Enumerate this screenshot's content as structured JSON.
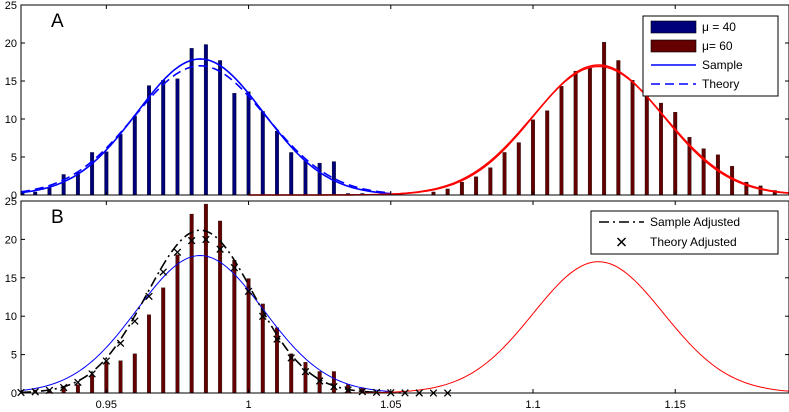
{
  "chart_data": [
    {
      "panel_label": "A",
      "type": "bar",
      "xlim": [
        0.92,
        1.19
      ],
      "ylim": [
        0,
        25
      ],
      "yticks": [
        0,
        5,
        10,
        15,
        20,
        25
      ],
      "xticks": [],
      "legend_position": "top-right",
      "legend": [
        {
          "kind": "patch",
          "label": "μ = 40",
          "color": "#00007a"
        },
        {
          "kind": "patch",
          "label": "μ= 60",
          "color": "#640000"
        },
        {
          "kind": "line",
          "label": "Sample",
          "color": "#0000ff",
          "dash": "solid"
        },
        {
          "kind": "line",
          "label": "Theory",
          "color": "#0000ff",
          "dash": "dashed"
        }
      ],
      "bars": [
        {
          "name": "μ = 40",
          "color": "#00007a",
          "x": [
            0.9205,
            0.925,
            0.93,
            0.935,
            0.94,
            0.945,
            0.95,
            0.955,
            0.96,
            0.965,
            0.97,
            0.975,
            0.98,
            0.985,
            0.99,
            0.995,
            1.0,
            1.005,
            1.01,
            1.015,
            1.02,
            1.025,
            1.03,
            1.035,
            1.04
          ],
          "values": [
            0.3,
            0.4,
            1.0,
            2.7,
            3.0,
            5.6,
            5.7,
            8.0,
            10.4,
            14.4,
            15.1,
            15.3,
            19.3,
            19.8,
            17.7,
            13.4,
            13.6,
            11.0,
            8.4,
            5.6,
            4.6,
            4.2,
            4.4,
            0.2,
            0.2
          ]
        },
        {
          "name": "μ= 60",
          "color": "#640000",
          "x": [
            1.065,
            1.07,
            1.075,
            1.08,
            1.085,
            1.09,
            1.095,
            1.1,
            1.105,
            1.11,
            1.115,
            1.12,
            1.125,
            1.13,
            1.135,
            1.14,
            1.145,
            1.15,
            1.155,
            1.16,
            1.165,
            1.17,
            1.175,
            1.18,
            1.185
          ],
          "values": [
            0.4,
            0.8,
            1.7,
            2.4,
            3.6,
            5.6,
            6.9,
            9.9,
            11.1,
            14.3,
            16.3,
            16.7,
            20.1,
            17.7,
            15.1,
            13.5,
            12.1,
            10.9,
            7.6,
            6.1,
            5.3,
            3.8,
            1.7,
            1.2,
            0.6
          ]
        }
      ],
      "curves": [
        {
          "name": "Sample",
          "mean": 0.983,
          "sd": 0.0222,
          "peak": 17.9,
          "xrange": [
            0.92,
            1.05
          ],
          "color": "#0000ff",
          "dash": "solid",
          "width": 1.6
        },
        {
          "name": "Theory",
          "mean": 0.983,
          "sd": 0.0232,
          "peak": 17.0,
          "xrange": [
            0.92,
            1.05
          ],
          "color": "#0000ff",
          "dash": "dashed",
          "width": 1.6
        },
        {
          "name": "",
          "mean": 1.123,
          "sd": 0.0229,
          "peak": 17.1,
          "xrange": [
            1.0,
            1.19
          ],
          "color": "#ff0000",
          "dash": "solid",
          "width": 1.6
        },
        {
          "name": "",
          "mean": 1.123,
          "sd": 0.0234,
          "peak": 16.9,
          "xrange": [
            1.0,
            1.19
          ],
          "color": "#ff0000",
          "dash": "solid",
          "width": 1.2
        }
      ]
    },
    {
      "panel_label": "B",
      "type": "bar",
      "xlim": [
        0.92,
        1.19
      ],
      "ylim": [
        0,
        25
      ],
      "yticks": [
        0,
        5,
        10,
        15,
        20,
        25
      ],
      "xticks": [
        0.95,
        1,
        1.05,
        1.1,
        1.15
      ],
      "xtick_labels": [
        "0.95",
        "1",
        "1.05",
        "1.1",
        "1.15"
      ],
      "legend_position": "top-right",
      "legend": [
        {
          "kind": "line",
          "label": "Sample Adjusted",
          "color": "#000000",
          "dash": "dashdot"
        },
        {
          "kind": "marker",
          "label": "Theory Adjusted",
          "color": "#000000",
          "marker": "x"
        }
      ],
      "bars": [
        {
          "name": "",
          "color": "#640000",
          "x": [
            0.925,
            0.93,
            0.935,
            0.94,
            0.945,
            0.95,
            0.955,
            0.96,
            0.965,
            0.97,
            0.975,
            0.98,
            0.985,
            0.99,
            0.995,
            1.0,
            1.005,
            1.01,
            1.015,
            1.02,
            1.025,
            1.03,
            1.035,
            1.04
          ],
          "values": [
            0.4,
            0.3,
            0.8,
            1.1,
            2.4,
            4.1,
            4.2,
            5.1,
            10.2,
            13.7,
            18.0,
            23.3,
            24.6,
            22.4,
            17.3,
            14.9,
            11.6,
            8.5,
            5.1,
            4.0,
            2.8,
            2.8,
            1.1,
            0.7
          ]
        }
      ],
      "curves": [
        {
          "name": "",
          "mean": 0.983,
          "sd": 0.0222,
          "peak": 17.9,
          "xrange": [
            0.92,
            1.05
          ],
          "color": "#0000ff",
          "dash": "solid",
          "width": 1.0
        },
        {
          "name": "Sample Adjusted",
          "mean": 0.983,
          "sd": 0.0188,
          "peak": 21.2,
          "xrange": [
            0.92,
            1.055
          ],
          "color": "#000000",
          "dash": "dashdot",
          "width": 1.6
        },
        {
          "name": "",
          "mean": 1.123,
          "sd": 0.0229,
          "peak": 17.1,
          "xrange": [
            1.0,
            1.19
          ],
          "color": "#ff0000",
          "dash": "solid",
          "width": 1.0
        }
      ],
      "markers": {
        "name": "Theory Adjusted",
        "mean": 0.983,
        "sd": 0.0186,
        "peak": 20.1,
        "x": [
          0.92,
          0.925,
          0.93,
          0.935,
          0.94,
          0.945,
          0.95,
          0.955,
          0.96,
          0.965,
          0.97,
          0.975,
          0.98,
          0.985,
          0.99,
          0.995,
          1.0,
          1.005,
          1.01,
          1.015,
          1.02,
          1.025,
          1.03,
          1.035,
          1.04,
          1.045,
          1.05,
          1.055,
          1.06,
          1.065,
          1.07
        ]
      }
    }
  ]
}
